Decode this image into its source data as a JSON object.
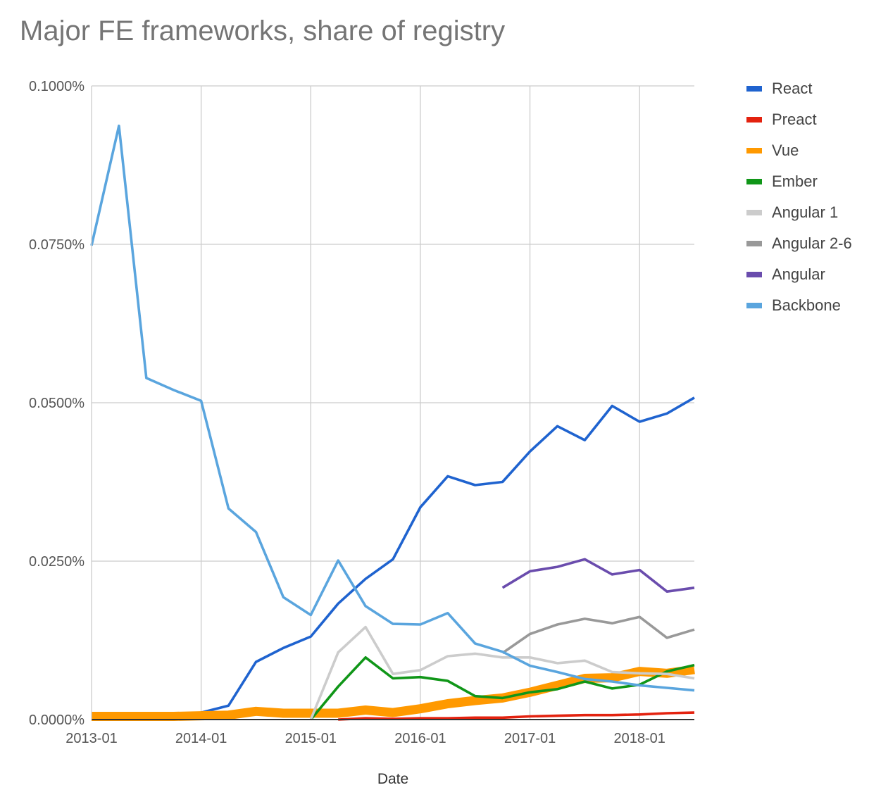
{
  "chart_data": {
    "type": "line",
    "title": "Major FE frameworks, share of registry",
    "xlabel": "Date",
    "ylabel": "",
    "x_axis": {
      "type": "date",
      "range": [
        "2013-01",
        "2018-07"
      ],
      "ticks": [
        "2013-01",
        "2014-01",
        "2015-01",
        "2016-01",
        "2017-01",
        "2018-01"
      ]
    },
    "y_axis": {
      "range": [
        0,
        0.1
      ],
      "unit": "percent",
      "ticks": [
        0,
        0.025,
        0.05,
        0.075,
        0.1
      ],
      "tick_labels": [
        "0.0000%",
        "0.0250%",
        "0.0500%",
        "0.0750%",
        "0.1000%"
      ]
    },
    "grid": true,
    "legend_position": "right",
    "series": [
      {
        "name": "React",
        "color": "#1f63cf",
        "width": "normal",
        "points": [
          [
            "2013-01",
            0
          ],
          [
            "2013-04",
            0
          ],
          [
            "2013-07",
            0
          ],
          [
            "2013-10",
            0
          ],
          [
            "2014-01",
            0.0011
          ],
          [
            "2014-04",
            0.0022
          ],
          [
            "2014-07",
            0.0091
          ],
          [
            "2014-10",
            0.0113
          ],
          [
            "2015-01",
            0.0131
          ],
          [
            "2015-04",
            0.0183
          ],
          [
            "2015-07",
            0.0222
          ],
          [
            "2015-10",
            0.0253
          ],
          [
            "2016-01",
            0.0335
          ],
          [
            "2016-04",
            0.0384
          ],
          [
            "2016-07",
            0.037
          ],
          [
            "2016-10",
            0.0375
          ],
          [
            "2017-01",
            0.0423
          ],
          [
            "2017-04",
            0.0463
          ],
          [
            "2017-07",
            0.0441
          ],
          [
            "2017-10",
            0.0495
          ],
          [
            "2018-01",
            0.047
          ],
          [
            "2018-04",
            0.0483
          ],
          [
            "2018-07",
            0.0508
          ]
        ]
      },
      {
        "name": "Preact",
        "color": "#e3220f",
        "width": "normal",
        "points": [
          [
            "2015-04",
            0
          ],
          [
            "2015-07",
            0.0002
          ],
          [
            "2015-10",
            0.0001
          ],
          [
            "2016-01",
            0.0002
          ],
          [
            "2016-04",
            0.0002
          ],
          [
            "2016-07",
            0.0003
          ],
          [
            "2016-10",
            0.0003
          ],
          [
            "2017-01",
            0.0005
          ],
          [
            "2017-04",
            0.0006
          ],
          [
            "2017-07",
            0.0007
          ],
          [
            "2017-10",
            0.0007
          ],
          [
            "2018-01",
            0.0008
          ],
          [
            "2018-04",
            0.001
          ],
          [
            "2018-07",
            0.0011
          ]
        ]
      },
      {
        "name": "Vue",
        "color": "#ff9900",
        "width": "thick",
        "points": [
          [
            "2013-01",
            0.0005
          ],
          [
            "2013-04",
            0.0005
          ],
          [
            "2013-07",
            0.0005
          ],
          [
            "2013-10",
            0.0005
          ],
          [
            "2014-01",
            0.0006
          ],
          [
            "2014-04",
            0.0007
          ],
          [
            "2014-07",
            0.0013
          ],
          [
            "2014-10",
            0.001
          ],
          [
            "2015-01",
            0.001
          ],
          [
            "2015-04",
            0.001
          ],
          [
            "2015-07",
            0.0015
          ],
          [
            "2015-10",
            0.0011
          ],
          [
            "2016-01",
            0.0017
          ],
          [
            "2016-04",
            0.0025
          ],
          [
            "2016-07",
            0.003
          ],
          [
            "2016-10",
            0.0034
          ],
          [
            "2017-01",
            0.0043
          ],
          [
            "2017-04",
            0.0054
          ],
          [
            "2017-07",
            0.0065
          ],
          [
            "2017-10",
            0.0066
          ],
          [
            "2018-01",
            0.0076
          ],
          [
            "2018-04",
            0.0073
          ],
          [
            "2018-07",
            0.0079
          ]
        ]
      },
      {
        "name": "Ember",
        "color": "#109618",
        "width": "normal",
        "points": [
          [
            "2015-01",
            0
          ],
          [
            "2015-04",
            0.0052
          ],
          [
            "2015-07",
            0.0098
          ],
          [
            "2015-10",
            0.0065
          ],
          [
            "2016-01",
            0.0067
          ],
          [
            "2016-04",
            0.0061
          ],
          [
            "2016-07",
            0.0037
          ],
          [
            "2016-10",
            0.0034
          ],
          [
            "2017-01",
            0.0043
          ],
          [
            "2017-04",
            0.0048
          ],
          [
            "2017-07",
            0.006
          ],
          [
            "2017-10",
            0.0049
          ],
          [
            "2018-01",
            0.0055
          ],
          [
            "2018-04",
            0.0076
          ],
          [
            "2018-07",
            0.0086
          ]
        ]
      },
      {
        "name": "Angular 1",
        "color": "#cccccc",
        "width": "normal",
        "points": [
          [
            "2015-01",
            0
          ],
          [
            "2015-04",
            0.0106
          ],
          [
            "2015-07",
            0.0146
          ],
          [
            "2015-10",
            0.0072
          ],
          [
            "2016-01",
            0.0078
          ],
          [
            "2016-04",
            0.01
          ],
          [
            "2016-07",
            0.0104
          ],
          [
            "2016-10",
            0.0098
          ],
          [
            "2017-01",
            0.0098
          ],
          [
            "2017-04",
            0.0089
          ],
          [
            "2017-07",
            0.0093
          ],
          [
            "2017-10",
            0.0075
          ],
          [
            "2018-01",
            0.0073
          ],
          [
            "2018-04",
            0.0072
          ],
          [
            "2018-07",
            0.0065
          ]
        ]
      },
      {
        "name": "Angular 2-6",
        "color": "#999999",
        "width": "normal",
        "points": [
          [
            "2016-10",
            0.0105
          ],
          [
            "2017-01",
            0.0135
          ],
          [
            "2017-04",
            0.015
          ],
          [
            "2017-07",
            0.0159
          ],
          [
            "2017-10",
            0.0152
          ],
          [
            "2018-01",
            0.0162
          ],
          [
            "2018-04",
            0.0129
          ],
          [
            "2018-07",
            0.0142
          ]
        ]
      },
      {
        "name": "Angular",
        "color": "#6a4cad",
        "width": "normal",
        "points": [
          [
            "2016-10",
            0.0208
          ],
          [
            "2017-01",
            0.0234
          ],
          [
            "2017-04",
            0.0241
          ],
          [
            "2017-07",
            0.0253
          ],
          [
            "2017-10",
            0.0229
          ],
          [
            "2018-01",
            0.0236
          ],
          [
            "2018-04",
            0.0202
          ],
          [
            "2018-07",
            0.0208
          ]
        ]
      },
      {
        "name": "Backbone",
        "color": "#5aa5de",
        "width": "normal",
        "points": [
          [
            "2013-01",
            0.0748
          ],
          [
            "2013-04",
            0.0937
          ],
          [
            "2013-07",
            0.0539
          ],
          [
            "2013-10",
            0.052
          ],
          [
            "2014-01",
            0.0503
          ],
          [
            "2014-04",
            0.0333
          ],
          [
            "2014-07",
            0.0296
          ],
          [
            "2014-10",
            0.0193
          ],
          [
            "2015-01",
            0.0165
          ],
          [
            "2015-04",
            0.0251
          ],
          [
            "2015-07",
            0.0179
          ],
          [
            "2015-10",
            0.0151
          ],
          [
            "2016-01",
            0.015
          ],
          [
            "2016-04",
            0.0168
          ],
          [
            "2016-07",
            0.012
          ],
          [
            "2016-10",
            0.0107
          ],
          [
            "2017-01",
            0.0085
          ],
          [
            "2017-04",
            0.0075
          ],
          [
            "2017-07",
            0.0064
          ],
          [
            "2017-10",
            0.006
          ],
          [
            "2018-01",
            0.0054
          ],
          [
            "2018-04",
            0.005
          ],
          [
            "2018-07",
            0.0046
          ]
        ]
      }
    ]
  }
}
